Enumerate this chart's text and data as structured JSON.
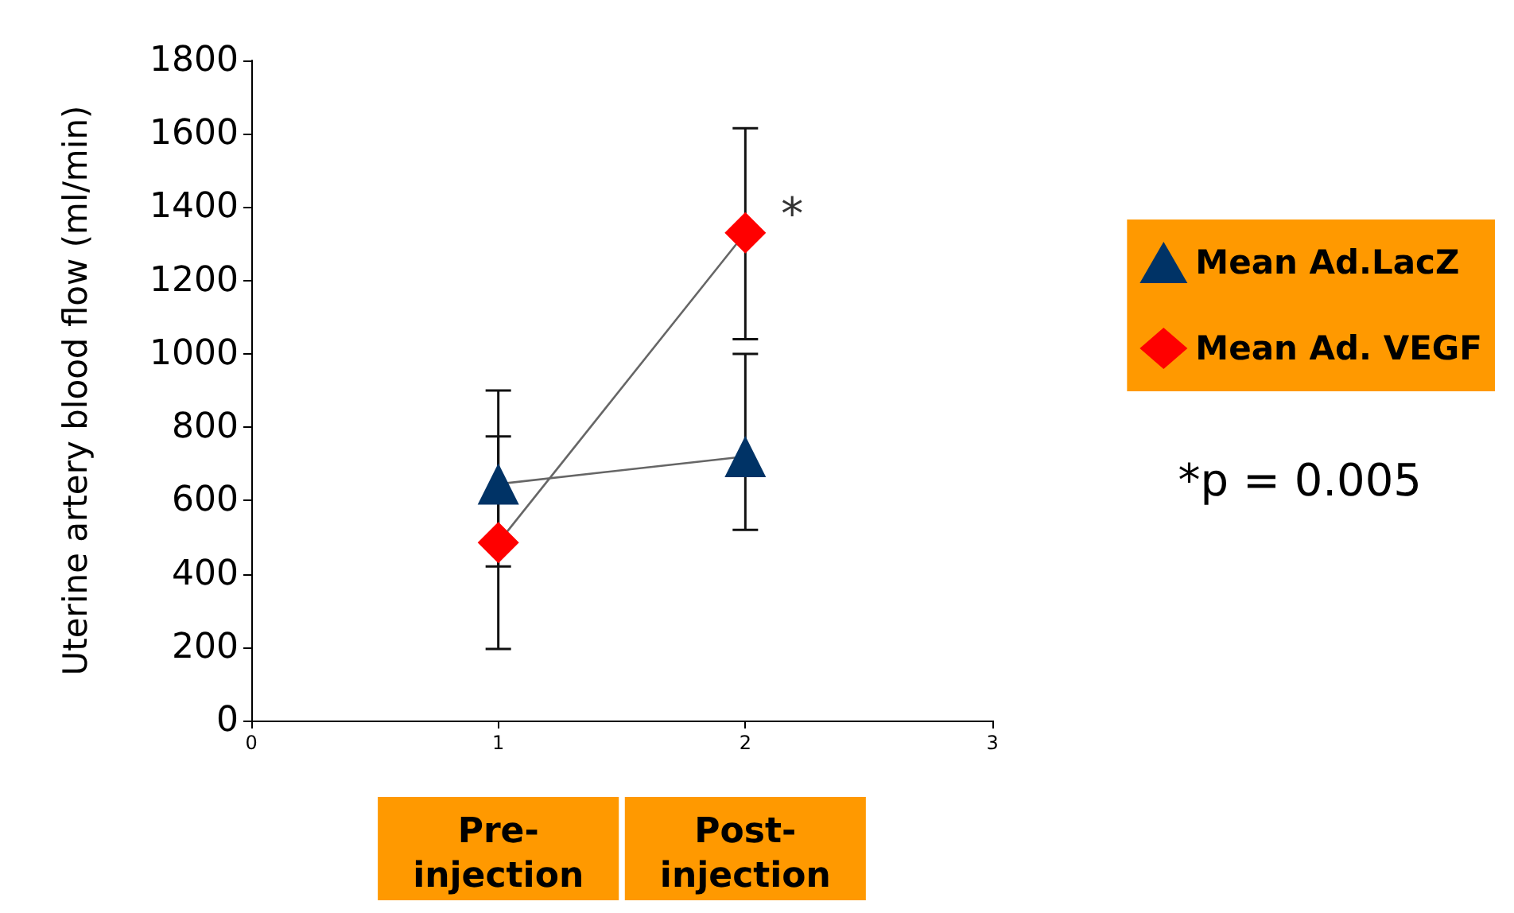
{
  "chart_data": {
    "type": "line",
    "ylabel": "Uterine artery blood flow (ml/min)",
    "x": [
      1,
      2
    ],
    "xlim": [
      0,
      3
    ],
    "xticks": [
      0,
      1,
      2,
      3
    ],
    "ylim": [
      0,
      1800
    ],
    "yticks": [
      0,
      200,
      400,
      600,
      800,
      1000,
      1200,
      1400,
      1600,
      1800
    ],
    "grid": false,
    "legend": "right",
    "line_style": "solid",
    "series": [
      {
        "name": "Mean Ad.LacZ",
        "color": "#003366",
        "marker": "triangle",
        "values": [
          645,
          720
        ],
        "errors": [
          [
            420,
            900
          ],
          [
            520,
            1000
          ]
        ]
      },
      {
        "name": "Mean Ad. VEGF",
        "color": "#ff0000",
        "marker": "diamond",
        "values": [
          485,
          1330
        ],
        "errors": [
          [
            195,
            775
          ],
          [
            1040,
            1615
          ]
        ]
      }
    ],
    "annotations": [
      {
        "text": "*",
        "x": 2,
        "y": 1330
      },
      "*p = 0.005",
      "Pre-injection",
      "Post-injection"
    ]
  }
}
